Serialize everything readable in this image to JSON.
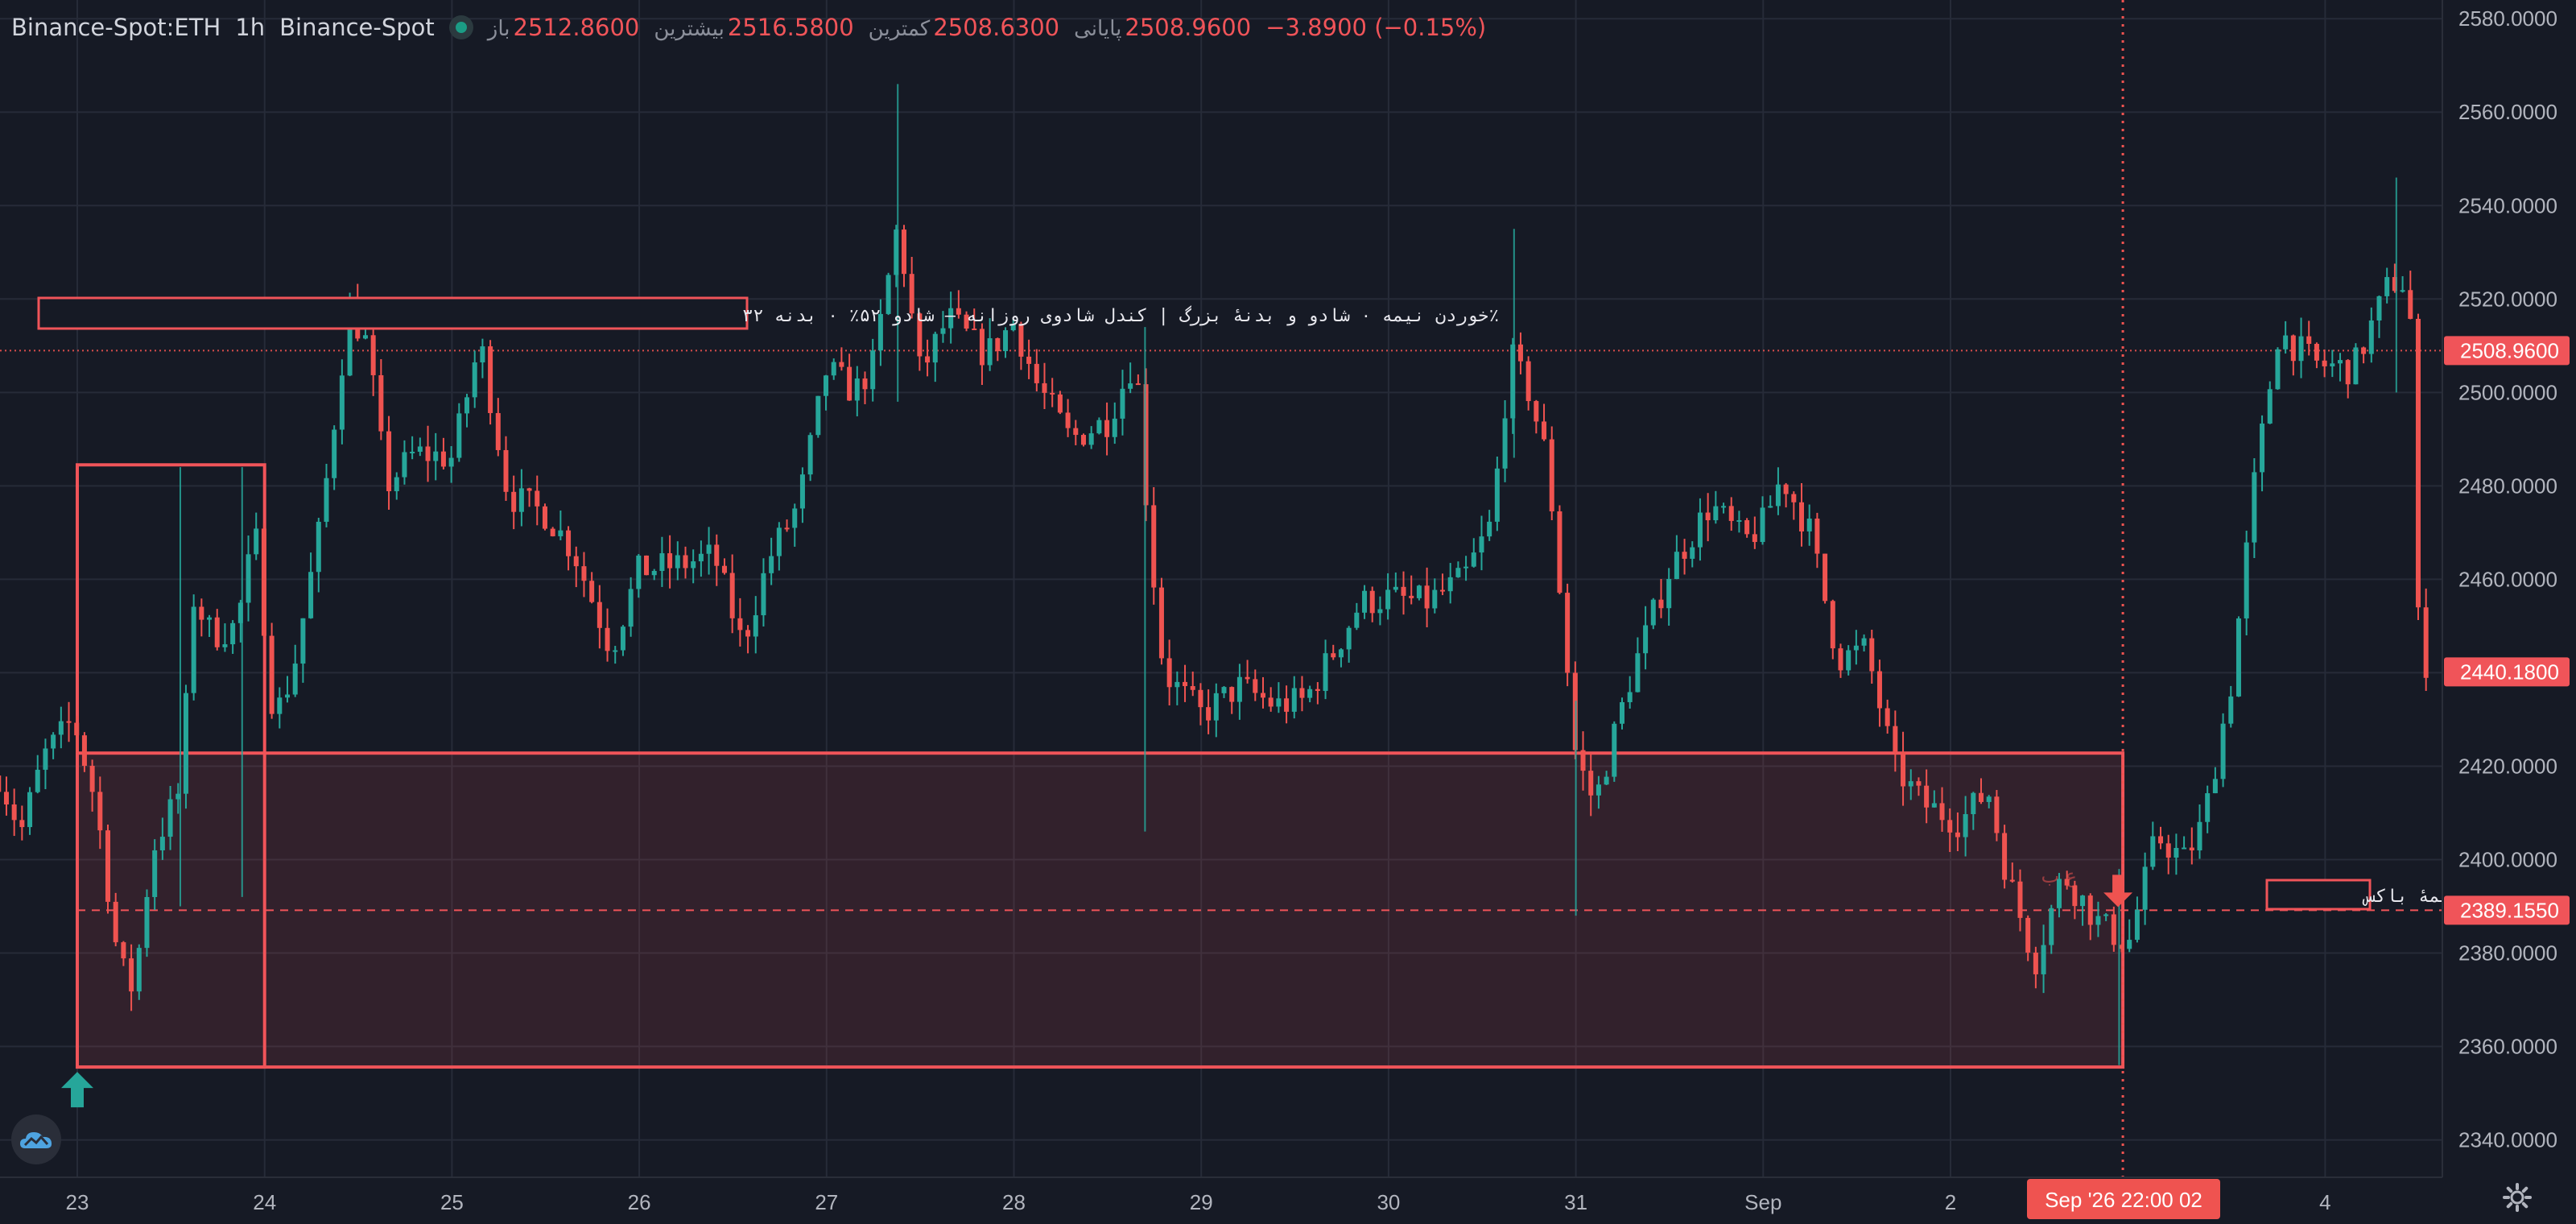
{
  "header": {
    "symbol": "Binance-Spot:ETH",
    "interval": "1h",
    "exchange": "Binance-Spot",
    "open_label": "باز",
    "open_value": "2512.8600",
    "high_label": "بیشترین",
    "high_value": "2516.5800",
    "low_label": "کمترین",
    "low_value": "2508.6300",
    "close_label": "پایانی",
    "close_value": "2508.9600",
    "change": "−3.8900 (−0.15%)"
  },
  "colors": {
    "background": "#161a25",
    "up": "#26a69a",
    "down": "#ef5350",
    "grid": "#262b38",
    "axis_text": "#b2b5be",
    "box": "#f05459"
  },
  "icons": {
    "settings": "gear-icon",
    "logo": "cloud-logo-icon",
    "entry_marker": "arrow-up-icon",
    "signal_marker": "arrow-down-icon"
  },
  "chart_data": {
    "type": "candlestick",
    "timeframe": "1h",
    "ylim": [
      2332,
      2584
    ],
    "y_ticks": [
      2340,
      2360,
      2380,
      2400,
      2420,
      2440,
      2460,
      2480,
      2500,
      2520,
      2540,
      2560,
      2580
    ],
    "y_tick_labels": [
      "2340.0000",
      "2360.0000",
      "2380.0000",
      "2400.0000",
      "2420.0000",
      "2440.0000",
      "2460.0000",
      "2480.0000",
      "2500.0000",
      "2520.0000",
      "2540.0000",
      "2560.0000",
      "2580.0000"
    ],
    "x_ticks": [
      {
        "day": 0,
        "label": "23"
      },
      {
        "day": 1,
        "label": "24"
      },
      {
        "day": 2,
        "label": "25"
      },
      {
        "day": 3,
        "label": "26"
      },
      {
        "day": 4,
        "label": "27"
      },
      {
        "day": 5,
        "label": "28"
      },
      {
        "day": 6,
        "label": "29"
      },
      {
        "day": 7,
        "label": "30"
      },
      {
        "day": 8,
        "label": "31"
      },
      {
        "day": 9,
        "label": "Sep"
      },
      {
        "day": 10,
        "label": "2"
      },
      {
        "day": 12,
        "label": "4"
      }
    ],
    "x_range_days": [
      -0.42,
      12.6
    ],
    "path_anchors": [
      [
        -0.42,
        2418
      ],
      [
        -0.3,
        2406
      ],
      [
        -0.18,
        2422
      ],
      [
        -0.02,
        2430
      ],
      [
        0.1,
        2412
      ],
      [
        0.22,
        2378
      ],
      [
        0.3,
        2372
      ],
      [
        0.4,
        2402
      ],
      [
        0.55,
        2415
      ],
      [
        0.62,
        2456
      ],
      [
        0.72,
        2448
      ],
      [
        0.85,
        2450
      ],
      [
        0.95,
        2470
      ],
      [
        1.05,
        2430
      ],
      [
        1.15,
        2440
      ],
      [
        1.3,
        2472
      ],
      [
        1.45,
        2518
      ],
      [
        1.55,
        2510
      ],
      [
        1.65,
        2480
      ],
      [
        1.8,
        2487
      ],
      [
        2.0,
        2486
      ],
      [
        2.15,
        2511
      ],
      [
        2.3,
        2478
      ],
      [
        2.5,
        2474
      ],
      [
        2.65,
        2466
      ],
      [
        2.85,
        2445
      ],
      [
        3.0,
        2462
      ],
      [
        3.2,
        2463
      ],
      [
        3.4,
        2465
      ],
      [
        3.55,
        2446
      ],
      [
        3.7,
        2465
      ],
      [
        3.85,
        2476
      ],
      [
        4.0,
        2505
      ],
      [
        4.15,
        2500
      ],
      [
        4.25,
        2506
      ],
      [
        4.38,
        2536
      ],
      [
        4.5,
        2504
      ],
      [
        4.65,
        2516
      ],
      [
        4.85,
        2508
      ],
      [
        5.0,
        2515
      ],
      [
        5.12,
        2502
      ],
      [
        5.3,
        2490
      ],
      [
        5.5,
        2494
      ],
      [
        5.65,
        2508
      ],
      [
        5.72,
        2470
      ],
      [
        5.8,
        2440
      ],
      [
        6.0,
        2431
      ],
      [
        6.2,
        2437
      ],
      [
        6.4,
        2433
      ],
      [
        6.55,
        2434
      ],
      [
        6.7,
        2444
      ],
      [
        6.85,
        2455
      ],
      [
        7.0,
        2456
      ],
      [
        7.2,
        2455
      ],
      [
        7.4,
        2460
      ],
      [
        7.55,
        2472
      ],
      [
        7.65,
        2508
      ],
      [
        7.75,
        2500
      ],
      [
        7.85,
        2485
      ],
      [
        8.0,
        2422
      ],
      [
        8.1,
        2412
      ],
      [
        8.3,
        2440
      ],
      [
        8.5,
        2462
      ],
      [
        8.72,
        2476
      ],
      [
        8.9,
        2468
      ],
      [
        9.0,
        2472
      ],
      [
        9.1,
        2482
      ],
      [
        9.25,
        2470
      ],
      [
        9.4,
        2443
      ],
      [
        9.55,
        2445
      ],
      [
        9.7,
        2420
      ],
      [
        9.85,
        2412
      ],
      [
        10.05,
        2408
      ],
      [
        10.2,
        2415
      ],
      [
        10.3,
        2397
      ],
      [
        10.45,
        2378
      ],
      [
        10.6,
        2397
      ],
      [
        10.8,
        2386
      ],
      [
        10.95,
        2382
      ],
      [
        11.1,
        2405
      ],
      [
        11.25,
        2400
      ],
      [
        11.35,
        2408
      ],
      [
        11.5,
        2438
      ],
      [
        11.62,
        2480
      ],
      [
        11.75,
        2513
      ],
      [
        11.95,
        2506
      ],
      [
        12.15,
        2505
      ],
      [
        12.35,
        2524
      ],
      [
        12.45,
        2523
      ],
      [
        12.5,
        2446
      ],
      [
        12.56,
        2440
      ]
    ],
    "spike_bars": [
      {
        "day": 0.55,
        "high": 2484,
        "low": 2390
      },
      {
        "day": 0.88,
        "high": 2484,
        "low": 2392
      },
      {
        "day": 4.38,
        "high": 2566,
        "low": 2498
      },
      {
        "day": 5.7,
        "high": 2514,
        "low": 2406
      },
      {
        "day": 7.67,
        "high": 2535,
        "low": 2486
      },
      {
        "day": 8.0,
        "high": 2434,
        "low": 2388
      },
      {
        "day": 10.9,
        "high": 2398,
        "low": 2356
      },
      {
        "day": 12.38,
        "high": 2546,
        "low": 2500
      }
    ],
    "last_price": 2508.96,
    "last_close": 2440.18,
    "box_mid_price": 2389.155,
    "price_badges": [
      "2508.9600",
      "2440.1800",
      "2389.1550"
    ],
    "zone": {
      "start_day": 0,
      "end_day": 10.92,
      "top": 2422.8,
      "bottom": 2355.6
    },
    "daily_candle_box": {
      "start_day": 0,
      "end_day": 1.0,
      "top": 2484.5,
      "bottom": 2355.6
    },
    "crosshair_day": 10.92,
    "crosshair_label": "Sep '26   22:00 02",
    "annotation": "٪خوردن نیمه ۰ شادو و بدنهٔ بزرگ | کندل شادوی روزانه — شادو ۵۲٪ ۰ بدنه ۳۲",
    "mid_label": "نیمهٔ باکس",
    "faint_label": "ع ب"
  }
}
